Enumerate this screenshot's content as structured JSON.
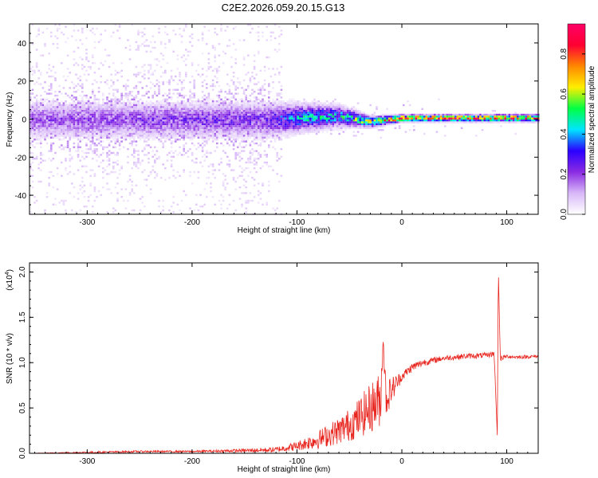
{
  "figure_title": "C2E2.2026.059.20.15.G13",
  "colors": {
    "snr_line": "#e8261f",
    "axis": "#000000"
  },
  "chart_data": [
    {
      "type": "heatmap",
      "title": "C2E2.2026.059.20.15.G13",
      "xlabel": "Height of straight line (km)",
      "ylabel": "Frequency (Hz)",
      "xlim": [
        -355,
        130
      ],
      "ylim": [
        -50,
        50
      ],
      "x_ticks": [
        -300,
        -200,
        -100,
        0,
        100
      ],
      "y_ticks": [
        -40,
        -20,
        0,
        20,
        40
      ],
      "colorbar": {
        "label": "Normalized spectral amplitude",
        "range": [
          0,
          0.95
        ],
        "ticks": [
          "0.0",
          "0.2",
          "0.4",
          "0.6",
          "0.8"
        ],
        "tick_values": [
          0,
          0.2,
          0.4,
          0.6,
          0.8
        ],
        "colormap": [
          "#ffffff",
          "#d8b8f8",
          "#8a2be2",
          "#2b00ff",
          "#00e5ff",
          "#00ff44",
          "#ffee00",
          "#ff8800",
          "#ff0033",
          "#ff0066"
        ]
      },
      "ridge": [
        {
          "x": -355,
          "f": 0,
          "amp": 0.2,
          "spread_hz": 5
        },
        {
          "x": -130,
          "f": 0,
          "amp": 0.25,
          "spread_hz": 5
        },
        {
          "x": -100,
          "f": 1,
          "amp": 0.45,
          "spread_hz": 4
        },
        {
          "x": -60,
          "f": 2,
          "amp": 0.45,
          "spread_hz": 3
        },
        {
          "x": -30,
          "f": -1,
          "amp": 0.7,
          "spread_hz": 1.5
        },
        {
          "x": 0,
          "f": 1,
          "amp": 0.85,
          "spread_hz": 1
        },
        {
          "x": 90,
          "f": 1,
          "amp": 0.9,
          "spread_hz": 1
        },
        {
          "x": 130,
          "f": 1,
          "amp": 0.9,
          "spread_hz": 1
        }
      ],
      "noise_extent_x": [
        -355,
        -115
      ]
    },
    {
      "type": "line",
      "xlabel": "Height of straight line (km)",
      "ylabel": "SNR (10 * v/v)",
      "y_multiplier": "(x10",
      "y_multiplier_exp": "4",
      "y_multiplier_close": ")",
      "xlim": [
        -355,
        130
      ],
      "ylim": [
        0,
        2.1
      ],
      "x_ticks": [
        -300,
        -200,
        -100,
        0,
        100
      ],
      "y_ticks": [
        "0.0",
        "0.5",
        "1.0",
        "1.5",
        "2.0"
      ],
      "y_tick_values": [
        0,
        0.5,
        1.0,
        1.5,
        2.0
      ],
      "series": [
        {
          "name": "SNR",
          "x": [
            -355,
            -300,
            -250,
            -200,
            -150,
            -120,
            -100,
            -80,
            -60,
            -45,
            -35,
            -25,
            -20,
            -18,
            -15,
            -10,
            0,
            10,
            20,
            40,
            60,
            80,
            88,
            91,
            92,
            93,
            94,
            95,
            100,
            110,
            130
          ],
          "y": [
            0.0,
            0.01,
            0.02,
            0.02,
            0.03,
            0.04,
            0.08,
            0.15,
            0.25,
            0.35,
            0.45,
            0.55,
            0.6,
            1.3,
            0.6,
            0.7,
            0.85,
            0.95,
            1.0,
            1.05,
            1.07,
            1.08,
            1.1,
            0.2,
            2.05,
            1.5,
            1.0,
            1.05,
            1.07,
            1.06,
            1.07
          ],
          "noise_amplitude": [
            0.0,
            0.01,
            0.01,
            0.01,
            0.02,
            0.03,
            0.05,
            0.1,
            0.15,
            0.2,
            0.25,
            0.3,
            0.3,
            0.1,
            0.2,
            0.15,
            0.05,
            0.05,
            0.04,
            0.03,
            0.03,
            0.03,
            0.03,
            0.0,
            0.0,
            0.0,
            0.03,
            0.03,
            0.02,
            0.02,
            0.02
          ]
        }
      ]
    }
  ]
}
